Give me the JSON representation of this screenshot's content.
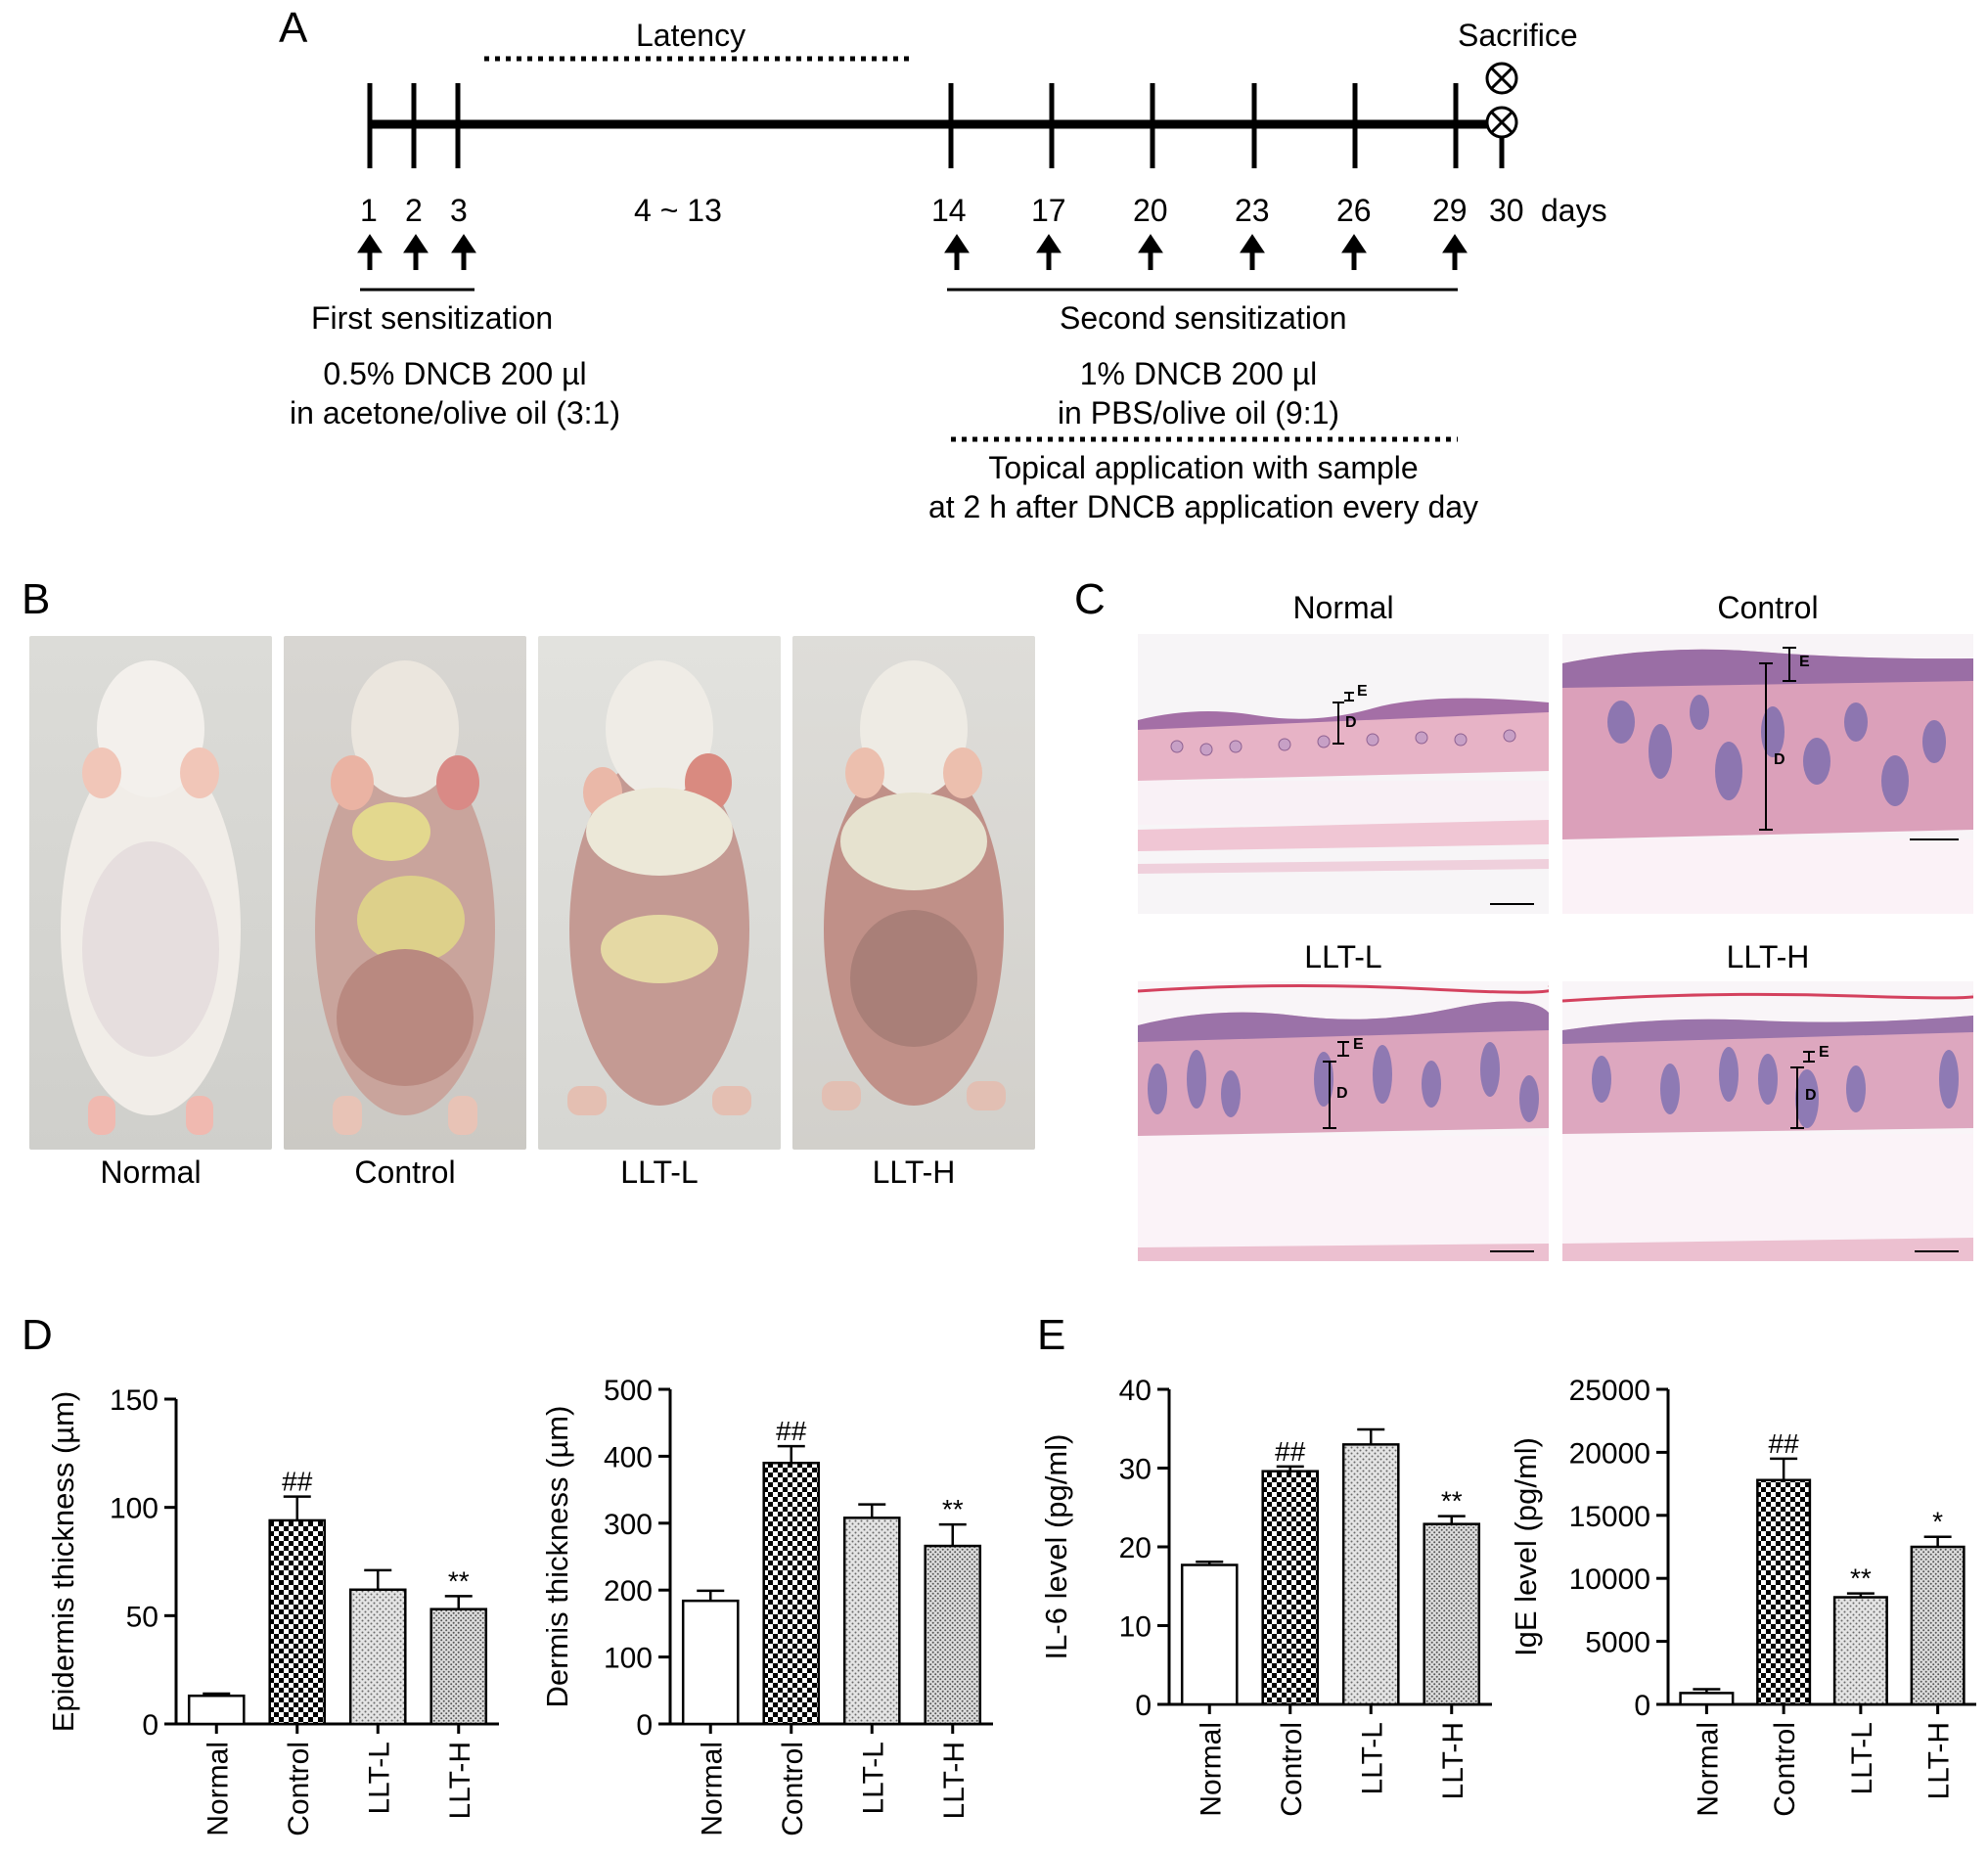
{
  "panels": {
    "a": "A",
    "b": "B",
    "c": "C",
    "d": "D",
    "e": "E"
  },
  "timeline": {
    "latency_label": "Latency",
    "sacrifice_label": "Sacrifice",
    "days": [
      "1",
      "2",
      "3",
      "4 ~ 13",
      "14",
      "17",
      "20",
      "23",
      "26",
      "29",
      "30"
    ],
    "days_unit": "days",
    "first_title": "First sensitization",
    "first_line1": "0.5% DNCB 200 µl",
    "first_line2": "in acetone/olive oil (3:1)",
    "second_title": "Second sensitization",
    "second_line1": "1% DNCB 200 µl",
    "second_line2": "in PBS/olive oil (9:1)",
    "topical_line1": "Topical application with sample",
    "topical_line2": "at 2 h after DNCB application every day"
  },
  "photos": {
    "labels": [
      "Normal",
      "Control",
      "LLT-L",
      "LLT-H"
    ]
  },
  "histology": {
    "titles": [
      "Normal",
      "Control",
      "LLT-L",
      "LLT-H"
    ],
    "epidermis_mark": "E",
    "dermis_mark": "D"
  },
  "chart_data": [
    {
      "type": "bar",
      "categories": [
        "Normal",
        "Control",
        "LLT-L",
        "LLT-H"
      ],
      "values": [
        13,
        94,
        62,
        53
      ],
      "errors": [
        1,
        11,
        9,
        6
      ],
      "annotations": [
        "",
        "##",
        "",
        "**"
      ],
      "ylabel": "Epidermis thickness (µm)",
      "ylim": [
        0,
        150
      ],
      "yticks": [
        0,
        50,
        100,
        150
      ],
      "patterns": [
        "none",
        "checker",
        "stipple",
        "stipple-dense"
      ]
    },
    {
      "type": "bar",
      "categories": [
        "Normal",
        "Control",
        "LLT-L",
        "LLT-H"
      ],
      "values": [
        184,
        390,
        308,
        266
      ],
      "errors": [
        15,
        25,
        20,
        32
      ],
      "annotations": [
        "",
        "##",
        "",
        "**"
      ],
      "ylabel": "Dermis thickness (µm)",
      "ylim": [
        0,
        500
      ],
      "yticks": [
        0,
        100,
        200,
        300,
        400,
        500
      ],
      "patterns": [
        "none",
        "checker",
        "stipple",
        "stipple-dense"
      ]
    },
    {
      "type": "bar",
      "categories": [
        "Normal",
        "Control",
        "LLT-L",
        "LLT-H"
      ],
      "values": [
        17.7,
        29.6,
        33.0,
        22.9
      ],
      "errors": [
        0.4,
        0.6,
        1.9,
        1.0
      ],
      "annotations": [
        "",
        "##",
        "",
        "**"
      ],
      "ylabel": "IL-6 level (pg/ml)",
      "ylim": [
        0,
        40
      ],
      "yticks": [
        0,
        10,
        20,
        30,
        40
      ],
      "patterns": [
        "none",
        "checker",
        "stipple",
        "stipple-dense"
      ]
    },
    {
      "type": "bar",
      "categories": [
        "Normal",
        "Control",
        "LLT-L",
        "LLT-H"
      ],
      "values": [
        900,
        17800,
        8500,
        12500
      ],
      "errors": [
        300,
        1700,
        300,
        800
      ],
      "annotations": [
        "",
        "##",
        "**",
        "*"
      ],
      "ylabel": "IgE level (pg/ml)",
      "ylim": [
        0,
        25000
      ],
      "yticks": [
        0,
        5000,
        10000,
        15000,
        20000,
        25000
      ],
      "patterns": [
        "none",
        "checker",
        "stipple",
        "stipple-dense"
      ]
    }
  ]
}
